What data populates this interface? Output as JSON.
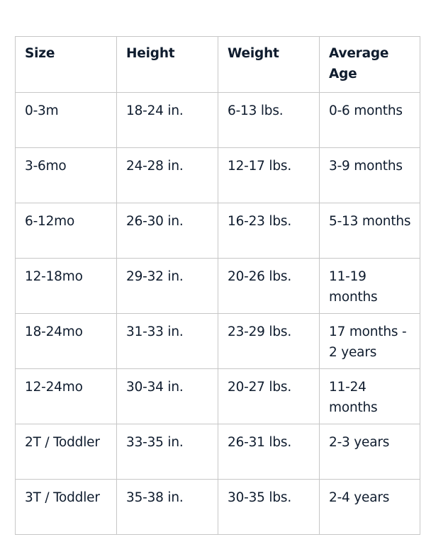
{
  "table": {
    "headers": [
      "Size",
      "Height",
      "Weight",
      "Average Age"
    ],
    "rows": [
      [
        "0-3m",
        "18-24 in.",
        "6-13 lbs.",
        "0-6 months"
      ],
      [
        "3-6mo",
        "24-28 in.",
        "12-17 lbs.",
        "3-9 months"
      ],
      [
        "6-12mo",
        "26-30 in.",
        "16-23 lbs.",
        "5-13 months"
      ],
      [
        "12-18mo",
        "29-32 in.",
        "20-26 lbs.",
        "11-19 months"
      ],
      [
        "18-24mo",
        "31-33 in.",
        "23-29 lbs.",
        "17 months - 2 years"
      ],
      [
        "12-24mo",
        "30-34 in.",
        "20-27 lbs.",
        "11-24 months"
      ],
      [
        "2T / Toddler",
        "33-35 in.",
        "26-31 lbs.",
        "2-3 years"
      ],
      [
        "3T / Toddler",
        "35-38 in.",
        "30-35 lbs.",
        "2-4 years"
      ]
    ]
  }
}
